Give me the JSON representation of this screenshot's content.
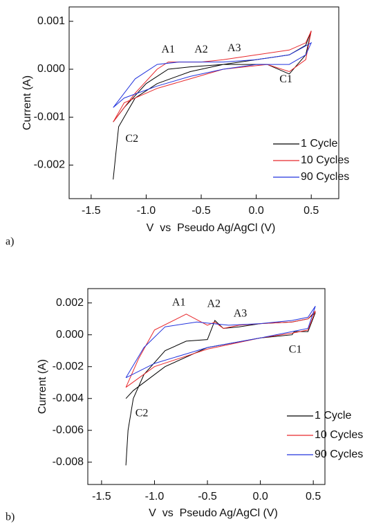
{
  "chart_data": [
    {
      "type": "line",
      "panel_label": "a)",
      "x_label": "V  vs  Pseudo Ag/AgCl (V)",
      "y_label": "Current (A)",
      "xlim": [
        -1.7,
        0.75
      ],
      "ylim": [
        -0.0027,
        0.0013
      ],
      "xticks": [
        -1.5,
        {
          "value": -1.0,
          "label": "-1.0"
        },
        -0.5,
        {
          "value": 0.0,
          "label": "0.0"
        },
        0.5
      ],
      "yticks": [
        -0.002,
        -0.001,
        {
          "value": 0.0,
          "label": "0.000"
        },
        0.001
      ],
      "legend": "lower right",
      "series": [
        {
          "name": "1 Cycle",
          "color": "#000000",
          "x": [
            -1.3,
            -1.25,
            -1.1,
            -0.9,
            -0.6,
            -0.3,
            0,
            0.3,
            0.45,
            0.5,
            0.45,
            0.3,
            0.1,
            -0.3,
            -0.6,
            -0.8,
            -1.0,
            -1.2,
            -1.3
          ],
          "values": [
            -0.0023,
            -0.0012,
            -0.0006,
            -0.0003,
            -5e-05,
            0.0001,
            0.0002,
            0.0003,
            0.0005,
            0.0008,
            0.0003,
            -0.0001,
            0.0001,
            0.0001,
            5e-05,
            0.0,
            -0.0003,
            -0.0008,
            -0.0011
          ]
        },
        {
          "name": "10 Cycles",
          "color": "#e8272b",
          "x": [
            -1.3,
            -1.1,
            -0.9,
            -0.8,
            -0.6,
            -0.5,
            -0.3,
            0,
            0.3,
            0.45,
            0.5,
            0.45,
            0.3,
            0.1,
            -0.3,
            -0.6,
            -0.9,
            -1.2,
            -1.3
          ],
          "values": [
            -0.0011,
            -0.0005,
            0.0,
            0.00015,
            0.00015,
            0.00015,
            0.0002,
            0.0003,
            0.0004,
            0.00055,
            0.0008,
            0.0002,
            -5e-05,
            0.0001,
            0.0,
            -0.0002,
            -0.0004,
            -0.0007,
            -0.0011
          ]
        },
        {
          "name": "90 Cycles",
          "color": "#2233dd",
          "x": [
            -1.3,
            -1.1,
            -0.9,
            -0.7,
            -0.5,
            -0.3,
            0,
            0.3,
            0.5,
            0.45,
            0.3,
            0,
            -0.3,
            -0.6,
            -0.9,
            -1.2,
            -1.3
          ],
          "values": [
            -0.0008,
            -0.0002,
            0.0001,
            0.00015,
            0.00015,
            0.00015,
            0.0002,
            0.0003,
            0.00055,
            0.0003,
            0.0001,
            0.0001,
            0.0,
            -0.00015,
            -0.00035,
            -0.0006,
            -0.0008
          ]
        }
      ],
      "annotations": [
        {
          "text": "A1",
          "x": -0.8,
          "y": 0.0004
        },
        {
          "text": "A2",
          "x": -0.5,
          "y": 0.0004
        },
        {
          "text": "A3",
          "x": -0.2,
          "y": 0.00043
        },
        {
          "text": "C1",
          "x": 0.27,
          "y": -0.00022
        },
        {
          "text": "C2",
          "x": -1.13,
          "y": -0.00146
        }
      ]
    },
    {
      "type": "line",
      "panel_label": "b)",
      "x_label": "V  vs  Pseudo Ag/AgCl (V)",
      "y_label": "Current (A)",
      "xlim": [
        -1.63,
        0.61
      ],
      "ylim": [
        -0.0094,
        0.0029
      ],
      "xticks": [
        -1.5,
        {
          "value": -1.0,
          "label": "-1.0"
        },
        -0.5,
        {
          "value": 0.0,
          "label": "0.0"
        },
        0.5
      ],
      "yticks": [
        -0.008,
        -0.006,
        -0.004,
        -0.002,
        {
          "value": 0.0,
          "label": "0.000"
        },
        0.002
      ],
      "legend": "lower right",
      "series": [
        {
          "name": "1 Cycle",
          "color": "#000000",
          "x": [
            -1.27,
            -1.25,
            -1.2,
            -1.1,
            -0.9,
            -0.7,
            -0.5,
            -0.43,
            -0.35,
            -0.2,
            0,
            0.3,
            0.45,
            0.52,
            0.45,
            0.32,
            0.3,
            0,
            -0.5,
            -0.9,
            -1.2,
            -1.27
          ],
          "values": [
            -0.0082,
            -0.006,
            -0.004,
            -0.0025,
            -0.001,
            -0.0004,
            -0.0003,
            0.0009,
            0.0004,
            0.0005,
            0.0007,
            0.0008,
            0.001,
            0.0014,
            0.0002,
            0.0002,
            0.0,
            -0.0002,
            -0.0008,
            -0.002,
            -0.0035,
            -0.004
          ]
        },
        {
          "name": "10 Cycles",
          "color": "#e8272b",
          "x": [
            -1.27,
            -1.15,
            -1.0,
            -0.7,
            -0.5,
            -0.43,
            -0.35,
            -0.2,
            0,
            0.3,
            0.45,
            0.52,
            0.45,
            0.3,
            0,
            -0.5,
            -1.0,
            -1.27
          ],
          "values": [
            -0.0033,
            -0.0015,
            0.0003,
            0.0013,
            0.0006,
            0.0008,
            0.0004,
            0.0006,
            0.0007,
            0.0008,
            0.001,
            0.0015,
            0.0003,
            0.0001,
            -0.0002,
            -0.0009,
            -0.002,
            -0.0033
          ]
        },
        {
          "name": "90 Cycles",
          "color": "#2233dd",
          "x": [
            -1.27,
            -1.1,
            -0.9,
            -0.6,
            -0.3,
            0,
            0.3,
            0.45,
            0.52,
            0.45,
            0.3,
            0,
            -0.5,
            -1.0,
            -1.27
          ],
          "values": [
            -0.0027,
            -0.0008,
            0.0005,
            0.0008,
            0.0006,
            0.0007,
            0.0009,
            0.0011,
            0.0018,
            0.0004,
            0.0002,
            -0.0002,
            -0.0008,
            -0.0018,
            -0.0027
          ]
        }
      ],
      "annotations": [
        {
          "text": "A1",
          "x": -0.77,
          "y": 0.002
        },
        {
          "text": "A2",
          "x": -0.44,
          "y": 0.0019
        },
        {
          "text": "A3",
          "x": -0.19,
          "y": 0.0013
        },
        {
          "text": "C1",
          "x": 0.33,
          "y": -0.00096
        },
        {
          "text": "C2",
          "x": -1.12,
          "y": -0.00496
        }
      ]
    }
  ]
}
